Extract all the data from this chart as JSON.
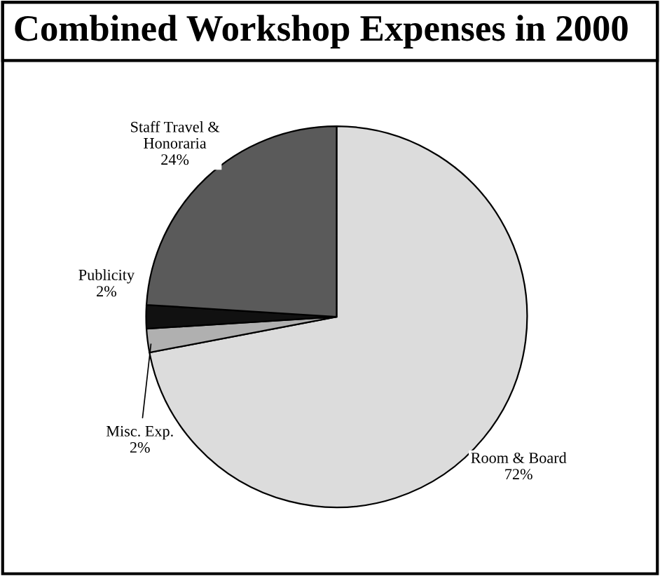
{
  "chart_data": {
    "type": "pie",
    "title": "Combined Workshop Expenses in 2000",
    "categories": [
      "Room & Board",
      "Misc. Exp.",
      "Publicity",
      "Staff Travel &\nHonoraria"
    ],
    "values": [
      72,
      2,
      2,
      24
    ],
    "value_labels": [
      "72%",
      "2%",
      "2%",
      "24%"
    ],
    "colors": [
      "#dcdcdc",
      "#b0b0b0",
      "#111111",
      "#5a5a5a"
    ],
    "legend": false
  }
}
